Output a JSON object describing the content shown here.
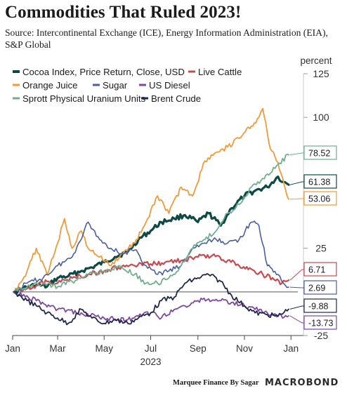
{
  "header": {
    "title": "Commodities That Ruled 2023!",
    "source": "Source: Intercontinental Exchange (ICE), Energy Information Administration (EIA), S&P Global"
  },
  "footer": {
    "credit": "Marquee Finance By Sagar",
    "brand": "MACROBOND"
  },
  "chart_data": {
    "type": "line",
    "ylabel": "percent",
    "ylim": [
      -25,
      125
    ],
    "yticks": [
      -25,
      25,
      100,
      125
    ],
    "xlim": [
      "2023-01-01",
      "2024-01-10"
    ],
    "xticks": [
      {
        "date": "2023-01-01",
        "label": "Jan"
      },
      {
        "date": "2023-03-01",
        "label": "Mar"
      },
      {
        "date": "2023-05-01",
        "label": "May"
      },
      {
        "date": "2023-07-01",
        "label": "Jul"
      },
      {
        "date": "2023-09-01",
        "label": "Sep"
      },
      {
        "date": "2023-11-01",
        "label": "Nov"
      },
      {
        "date": "2024-01-01",
        "label": "Jan"
      }
    ],
    "year_label": "2023",
    "zero_line": 0,
    "grid": false,
    "legend_position": "top-left",
    "series": [
      {
        "name": "Cocoa Index, Price Return, Close, USD",
        "color": "#0d4a43",
        "width": 3.2,
        "end_label": "61.38",
        "points": [
          [
            "2023-01-03",
            0
          ],
          [
            "2023-01-15",
            2
          ],
          [
            "2023-02-01",
            4
          ],
          [
            "2023-02-15",
            3
          ],
          [
            "2023-03-01",
            8
          ],
          [
            "2023-03-15",
            9
          ],
          [
            "2023-04-01",
            12
          ],
          [
            "2023-04-15",
            14
          ],
          [
            "2023-05-01",
            17
          ],
          [
            "2023-05-15",
            20
          ],
          [
            "2023-06-01",
            23
          ],
          [
            "2023-06-15",
            30
          ],
          [
            "2023-07-01",
            35
          ],
          [
            "2023-07-15",
            40
          ],
          [
            "2023-08-01",
            42
          ],
          [
            "2023-08-15",
            44
          ],
          [
            "2023-09-01",
            40
          ],
          [
            "2023-09-15",
            45
          ],
          [
            "2023-10-01",
            38
          ],
          [
            "2023-10-15",
            48
          ],
          [
            "2023-11-01",
            55
          ],
          [
            "2023-11-15",
            58
          ],
          [
            "2023-12-01",
            60
          ],
          [
            "2023-12-15",
            66
          ],
          [
            "2023-12-22",
            63
          ],
          [
            "2023-12-29",
            61.38
          ]
        ]
      },
      {
        "name": "Live Cattle",
        "color": "#c84b4f",
        "width": 2.2,
        "end_label": "6.71",
        "points": [
          [
            "2023-01-03",
            0
          ],
          [
            "2023-01-20",
            2
          ],
          [
            "2023-02-15",
            6
          ],
          [
            "2023-03-01",
            5
          ],
          [
            "2023-03-20",
            8
          ],
          [
            "2023-04-10",
            10
          ],
          [
            "2023-05-01",
            12
          ],
          [
            "2023-05-20",
            14
          ],
          [
            "2023-06-10",
            15
          ],
          [
            "2023-07-01",
            16
          ],
          [
            "2023-07-20",
            17
          ],
          [
            "2023-08-10",
            18
          ],
          [
            "2023-09-01",
            20
          ],
          [
            "2023-09-20",
            21
          ],
          [
            "2023-10-10",
            18
          ],
          [
            "2023-10-25",
            15
          ],
          [
            "2023-11-10",
            13
          ],
          [
            "2023-11-25",
            10
          ],
          [
            "2023-12-10",
            7
          ],
          [
            "2023-12-20",
            5
          ],
          [
            "2023-12-29",
            6.71
          ]
        ]
      },
      {
        "name": "Orange Juice",
        "color": "#f09a3a",
        "width": 1.8,
        "end_label": "53.06",
        "points": [
          [
            "2023-01-03",
            0
          ],
          [
            "2023-01-20",
            12
          ],
          [
            "2023-02-01",
            25
          ],
          [
            "2023-02-15",
            10
          ],
          [
            "2023-03-01",
            28
          ],
          [
            "2023-03-10",
            42
          ],
          [
            "2023-03-20",
            25
          ],
          [
            "2023-04-01",
            35
          ],
          [
            "2023-04-10",
            25
          ],
          [
            "2023-04-25",
            20
          ],
          [
            "2023-05-10",
            15
          ],
          [
            "2023-05-25",
            22
          ],
          [
            "2023-06-10",
            28
          ],
          [
            "2023-06-25",
            40
          ],
          [
            "2023-07-10",
            55
          ],
          [
            "2023-07-25",
            45
          ],
          [
            "2023-08-10",
            60
          ],
          [
            "2023-08-25",
            55
          ],
          [
            "2023-09-10",
            75
          ],
          [
            "2023-09-25",
            80
          ],
          [
            "2023-10-10",
            83
          ],
          [
            "2023-10-25",
            88
          ],
          [
            "2023-11-10",
            95
          ],
          [
            "2023-11-20",
            100
          ],
          [
            "2023-11-25",
            105
          ],
          [
            "2023-12-05",
            82
          ],
          [
            "2023-12-15",
            74
          ],
          [
            "2023-12-29",
            53.06
          ]
        ]
      },
      {
        "name": "Sugar",
        "color": "#4a5e9d",
        "width": 1.6,
        "end_label": "2.69",
        "points": [
          [
            "2023-01-03",
            0
          ],
          [
            "2023-01-20",
            5
          ],
          [
            "2023-02-10",
            8
          ],
          [
            "2023-03-01",
            15
          ],
          [
            "2023-03-20",
            20
          ],
          [
            "2023-04-10",
            40
          ],
          [
            "2023-04-25",
            30
          ],
          [
            "2023-05-10",
            25
          ],
          [
            "2023-05-25",
            22
          ],
          [
            "2023-06-10",
            24
          ],
          [
            "2023-06-25",
            15
          ],
          [
            "2023-07-10",
            10
          ],
          [
            "2023-07-25",
            12
          ],
          [
            "2023-08-10",
            15
          ],
          [
            "2023-08-25",
            25
          ],
          [
            "2023-09-10",
            28
          ],
          [
            "2023-09-25",
            30
          ],
          [
            "2023-10-10",
            28
          ],
          [
            "2023-10-25",
            30
          ],
          [
            "2023-11-10",
            40
          ],
          [
            "2023-11-20",
            38
          ],
          [
            "2023-12-01",
            15
          ],
          [
            "2023-12-15",
            10
          ],
          [
            "2023-12-22",
            5
          ],
          [
            "2023-12-29",
            2.69
          ]
        ]
      },
      {
        "name": "US Diesel",
        "color": "#7e47a0",
        "width": 1.8,
        "end_label": "-13.73",
        "points": [
          [
            "2023-01-03",
            0
          ],
          [
            "2023-02-01",
            -5
          ],
          [
            "2023-03-01",
            -10
          ],
          [
            "2023-04-01",
            -12
          ],
          [
            "2023-05-01",
            -15
          ],
          [
            "2023-06-01",
            -16
          ],
          [
            "2023-06-15",
            -14
          ],
          [
            "2023-07-01",
            -12
          ],
          [
            "2023-07-15",
            -15
          ],
          [
            "2023-08-01",
            -10
          ],
          [
            "2023-08-15",
            -8
          ],
          [
            "2023-09-01",
            -5
          ],
          [
            "2023-09-15",
            -4
          ],
          [
            "2023-10-01",
            -5
          ],
          [
            "2023-10-15",
            -6
          ],
          [
            "2023-11-01",
            -8
          ],
          [
            "2023-11-15",
            -10
          ],
          [
            "2023-12-01",
            -12
          ],
          [
            "2023-12-15",
            -14
          ],
          [
            "2023-12-29",
            -13.73
          ]
        ]
      },
      {
        "name": "Sprott Physical Uranium Units",
        "color": "#6fae8f",
        "width": 1.8,
        "end_label": "78.52",
        "points": [
          [
            "2023-01-03",
            0
          ],
          [
            "2023-01-20",
            3
          ],
          [
            "2023-02-10",
            5
          ],
          [
            "2023-03-01",
            3
          ],
          [
            "2023-03-20",
            6
          ],
          [
            "2023-04-10",
            10
          ],
          [
            "2023-05-01",
            12
          ],
          [
            "2023-05-20",
            15
          ],
          [
            "2023-06-10",
            10
          ],
          [
            "2023-06-25",
            5
          ],
          [
            "2023-07-10",
            5
          ],
          [
            "2023-07-25",
            8
          ],
          [
            "2023-08-10",
            15
          ],
          [
            "2023-08-25",
            25
          ],
          [
            "2023-09-10",
            30
          ],
          [
            "2023-09-25",
            35
          ],
          [
            "2023-10-10",
            45
          ],
          [
            "2023-10-25",
            50
          ],
          [
            "2023-11-10",
            60
          ],
          [
            "2023-11-25",
            65
          ],
          [
            "2023-12-05",
            68
          ],
          [
            "2023-12-15",
            73
          ],
          [
            "2023-12-29",
            78.52
          ]
        ]
      },
      {
        "name": "Brent Crude",
        "color": "#1f2a4a",
        "width": 1.8,
        "end_label": "-9.88",
        "points": [
          [
            "2023-01-03",
            0
          ],
          [
            "2023-01-20",
            -5
          ],
          [
            "2023-02-01",
            -8
          ],
          [
            "2023-02-15",
            -12
          ],
          [
            "2023-03-01",
            -15
          ],
          [
            "2023-03-15",
            -18
          ],
          [
            "2023-04-01",
            -10
          ],
          [
            "2023-04-15",
            -15
          ],
          [
            "2023-05-01",
            -18
          ],
          [
            "2023-05-15",
            -16
          ],
          [
            "2023-06-01",
            -18
          ],
          [
            "2023-06-15",
            -15
          ],
          [
            "2023-07-01",
            -12
          ],
          [
            "2023-07-15",
            -5
          ],
          [
            "2023-08-01",
            -3
          ],
          [
            "2023-08-15",
            5
          ],
          [
            "2023-09-01",
            8
          ],
          [
            "2023-09-15",
            10
          ],
          [
            "2023-10-01",
            6
          ],
          [
            "2023-10-15",
            -2
          ],
          [
            "2023-11-01",
            -8
          ],
          [
            "2023-11-15",
            -12
          ],
          [
            "2023-12-01",
            -13
          ],
          [
            "2023-12-15",
            -14
          ],
          [
            "2023-12-29",
            -9.88
          ]
        ]
      }
    ]
  }
}
